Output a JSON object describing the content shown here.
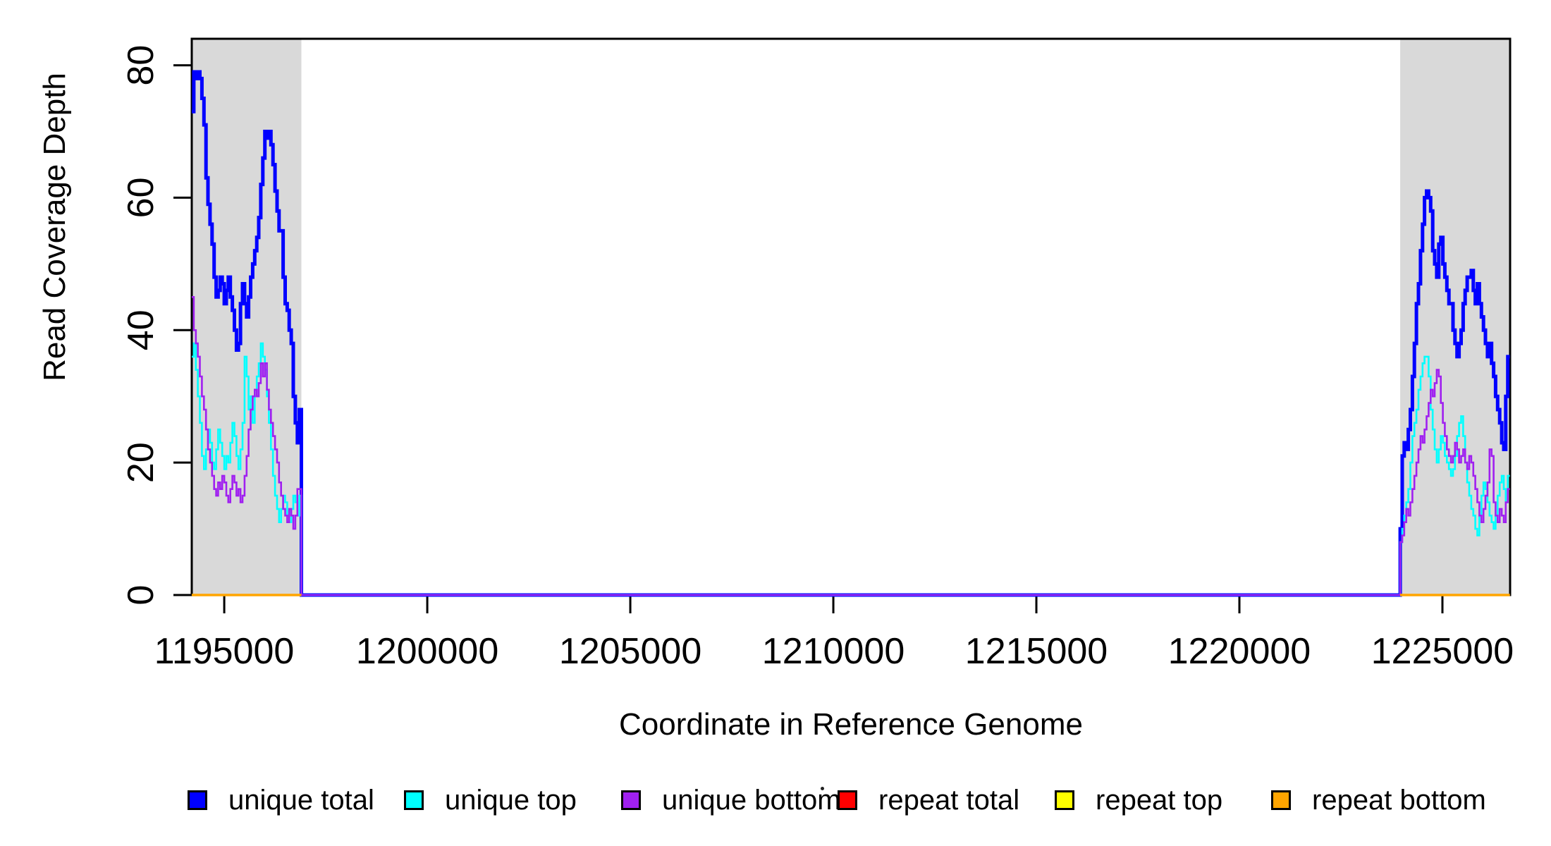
{
  "figure": {
    "background": "#FFFFFF",
    "plot_border_color": "#000000",
    "shaded_band_color": "#D9D9D9"
  },
  "legend": {
    "items": [
      {
        "label": "unique total",
        "color": "#0000FF"
      },
      {
        "label": "unique top",
        "color": "#00FFFF"
      },
      {
        "label": "unique bottom",
        "color": "#A020F0"
      },
      {
        "label": "repeat total",
        "color": "#FF0000"
      },
      {
        "label": "repeat top",
        "color": "#FFFF00"
      },
      {
        "label": "repeat bottom",
        "color": "#FFA500"
      }
    ]
  },
  "chart_data": {
    "type": "line",
    "step": true,
    "title": "",
    "xlabel": "Coordinate in Reference Genome",
    "ylabel": "Read Coverage Depth",
    "xlim": [
      1194200,
      1226667
    ],
    "ylim": [
      0,
      84
    ],
    "x_ticks": [
      1195000,
      1200000,
      1205000,
      1210000,
      1215000,
      1220000,
      1225000
    ],
    "y_ticks": [
      0,
      20,
      40,
      60,
      80
    ],
    "grid": false,
    "legend_position": "bottom",
    "shaded_regions": [
      {
        "x0": 1194200,
        "x1": 1196900
      },
      {
        "x0": 1223960,
        "x1": 1226667
      }
    ],
    "series": [
      {
        "name": "unique total",
        "color": "#0000FF",
        "width": 5,
        "paths": [
          [
            {
              "x0": 1194200,
              "dx": 50,
              "v": [
                73,
                79,
                78,
                79,
                78,
                75,
                71,
                63,
                59,
                56,
                53,
                48,
                45,
                46,
                48,
                47,
                44,
                46,
                48,
                45,
                43,
                40,
                37,
                38,
                44,
                47,
                44,
                42,
                45,
                48,
                50,
                52,
                54,
                57,
                62,
                66,
                70,
                69,
                70,
                68,
                65,
                61,
                58,
                55,
                55,
                48,
                44,
                43,
                40,
                38,
                30,
                26,
                23,
                28
              ]
            },
            {
              "x0": 1196900,
              "dx": 27060,
              "v": [
                0
              ]
            },
            {
              "x0": 1223960,
              "dx": 50,
              "v": [
                10,
                21,
                23,
                22,
                25,
                28,
                33,
                38,
                44,
                47,
                52,
                56,
                60,
                61,
                60,
                58,
                52,
                50,
                48,
                53,
                54,
                50,
                48,
                46,
                44,
                44,
                40,
                38,
                36,
                38,
                40,
                44,
                46,
                48,
                48,
                49,
                46,
                44,
                47,
                44,
                42,
                40,
                38,
                36,
                38,
                35,
                33,
                30,
                28,
                26,
                23,
                22,
                30,
                36
              ]
            }
          ]
        ]
      },
      {
        "name": "unique top",
        "color": "#00FFFF",
        "width": 2.6,
        "paths": [
          [
            {
              "x0": 1194200,
              "dx": 50,
              "v": [
                36,
                38,
                34,
                30,
                26,
                21,
                19,
                22,
                25,
                23,
                20,
                19,
                22,
                25,
                23,
                21,
                19,
                21,
                20,
                23,
                26,
                24,
                21,
                19,
                22,
                26,
                36,
                33,
                28,
                30,
                26,
                30,
                33,
                35,
                38,
                36,
                34,
                30,
                26,
                22,
                18,
                15,
                13,
                11,
                13,
                15,
                14,
                12,
                11,
                13,
                15,
                14,
                12,
                15
              ]
            },
            {
              "x0": 1196900,
              "dx": 27060,
              "v": [
                0
              ]
            },
            {
              "x0": 1223960,
              "dx": 50,
              "v": [
                8,
                10,
                12,
                14,
                16,
                20,
                24,
                26,
                28,
                31,
                33,
                35,
                36,
                36,
                33,
                28,
                25,
                22,
                20,
                22,
                24,
                23,
                21,
                20,
                19,
                18,
                19,
                21,
                24,
                26,
                27,
                24,
                20,
                17,
                15,
                13,
                12,
                10,
                9,
                12,
                15,
                17,
                16,
                14,
                12,
                11,
                10,
                12,
                15,
                17,
                18,
                16,
                14,
                18
              ]
            }
          ]
        ]
      },
      {
        "name": "unique bottom",
        "color": "#A020F0",
        "width": 2.6,
        "paths": [
          [
            {
              "x0": 1194200,
              "dx": 50,
              "v": [
                45,
                40,
                38,
                36,
                33,
                30,
                28,
                25,
                22,
                20,
                18,
                16,
                15,
                17,
                16,
                18,
                17,
                15,
                14,
                16,
                18,
                17,
                15,
                16,
                14,
                15,
                18,
                21,
                25,
                28,
                30,
                31,
                30,
                32,
                35,
                33,
                35,
                31,
                28,
                26,
                24,
                22,
                20,
                17,
                15,
                13,
                12,
                11,
                13,
                12,
                10,
                12,
                16,
                16
              ]
            },
            {
              "x0": 1196900,
              "dx": 27060,
              "v": [
                0
              ]
            },
            {
              "x0": 1223960,
              "dx": 50,
              "v": [
                8,
                9,
                11,
                13,
                12,
                14,
                16,
                18,
                20,
                22,
                24,
                23,
                25,
                27,
                29,
                31,
                30,
                32,
                34,
                33,
                29,
                26,
                24,
                22,
                21,
                20,
                21,
                23,
                22,
                20,
                21,
                22,
                20,
                19,
                21,
                20,
                18,
                16,
                14,
                12,
                11,
                13,
                15,
                17,
                22,
                21,
                14,
                12,
                11,
                13,
                12,
                11,
                14,
                16
              ]
            }
          ]
        ]
      },
      {
        "name": "repeat total",
        "color": "#FF0000",
        "width": 3,
        "paths": [
          [
            {
              "x0": 1194200,
              "dx": 2700,
              "v": [
                0
              ]
            }
          ],
          [
            {
              "x0": 1223960,
              "dx": 2700,
              "v": [
                0
              ]
            }
          ]
        ]
      },
      {
        "name": "repeat top",
        "color": "#FFFF00",
        "width": 3,
        "paths": [
          [
            {
              "x0": 1194200,
              "dx": 2700,
              "v": [
                0
              ]
            }
          ],
          [
            {
              "x0": 1223960,
              "dx": 2700,
              "v": [
                0
              ]
            }
          ]
        ]
      },
      {
        "name": "repeat bottom",
        "color": "#FFA500",
        "width": 3.5,
        "paths": [
          [
            {
              "x0": 1194200,
              "dx": 2700,
              "v": [
                0
              ]
            }
          ],
          [
            {
              "x0": 1223960,
              "dx": 2700,
              "v": [
                0
              ]
            }
          ]
        ]
      }
    ]
  }
}
